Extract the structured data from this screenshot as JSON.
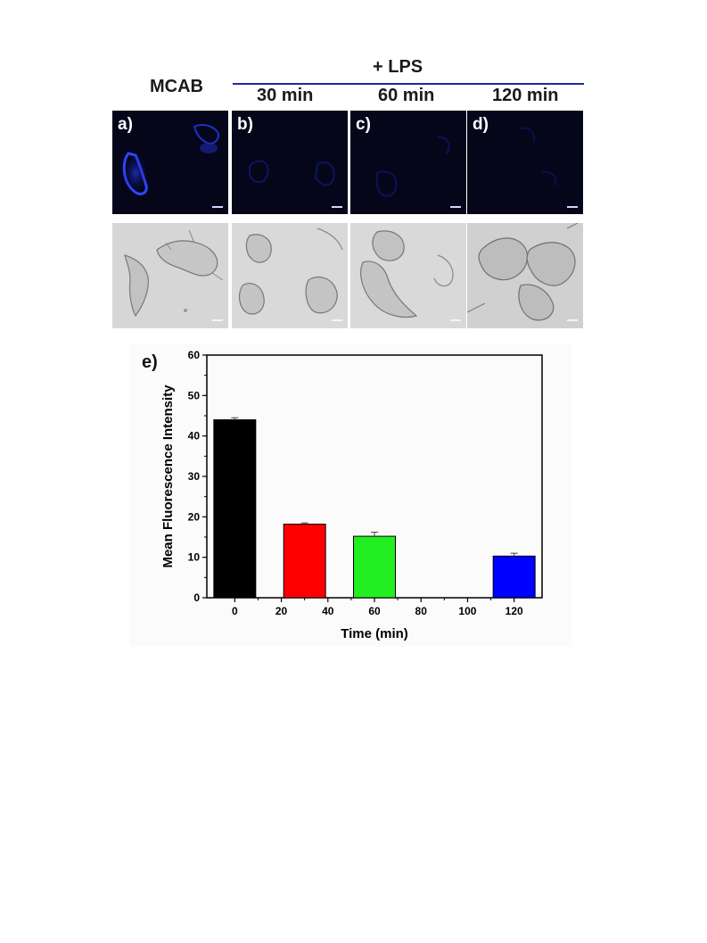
{
  "figure": {
    "left_header": "MCAB",
    "treatment_header": "+ LPS",
    "time_headers": [
      "30 min",
      "60 min",
      "120 min"
    ],
    "panel_labels": [
      "a)",
      "b)",
      "c)",
      "d)"
    ],
    "chart_label": "e)"
  },
  "colors": {
    "treatment_line": "#1f2aa8",
    "fluorescence_panel_bg": "#05061a",
    "bar_0": "#000000",
    "bar_30": "#ff0000",
    "bar_60": "#22ee22",
    "bar_120": "#0000ff"
  },
  "chart_data": {
    "type": "bar",
    "x": [
      0,
      30,
      60,
      120
    ],
    "values": [
      44,
      18.2,
      15.2,
      10.3
    ],
    "errors": [
      0.5,
      0.3,
      1.0,
      0.7
    ],
    "bar_colors": [
      "#000000",
      "#ff0000",
      "#22ee22",
      "#0000ff"
    ],
    "xlabel": "Time (min)",
    "ylabel": "Mean Fluorescence Intensity",
    "xlim": [
      -12,
      132
    ],
    "ylim": [
      0,
      60
    ],
    "xticks": [
      0,
      20,
      40,
      60,
      80,
      100,
      120
    ],
    "yticks": [
      0,
      10,
      20,
      30,
      40,
      50,
      60
    ],
    "grid": false
  }
}
